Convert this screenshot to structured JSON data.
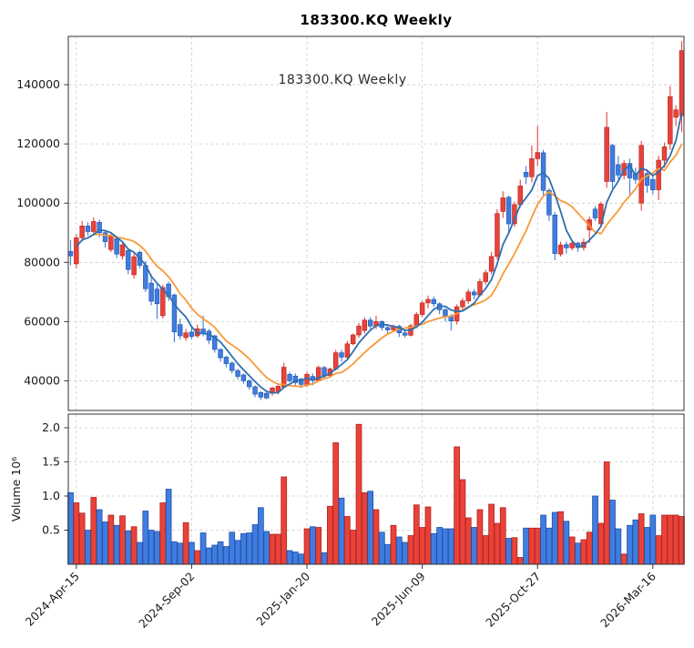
{
  "chart_data": {
    "type": "candlestick+volume",
    "title": "183300.KQ  Weekly",
    "inplot_label": "183300.KQ  Weekly",
    "x_ticks": [
      {
        "index": 1,
        "label": "2024-Apr-15"
      },
      {
        "index": 21,
        "label": "2024-Sep-02"
      },
      {
        "index": 41,
        "label": "2025-Jan-20"
      },
      {
        "index": 61,
        "label": "2025-Jun-09"
      },
      {
        "index": 81,
        "label": "2025-Oct-27"
      },
      {
        "index": 101,
        "label": "2026-Mar-16"
      }
    ],
    "price_ticks": [
      {
        "value": 40000,
        "label": "40000"
      },
      {
        "value": 60000,
        "label": "60000"
      },
      {
        "value": 80000,
        "label": "80000"
      },
      {
        "value": 100000,
        "label": "100000"
      },
      {
        "value": 120000,
        "label": "120000"
      },
      {
        "value": 140000,
        "label": "140000"
      }
    ],
    "volume_ticks": [
      {
        "value": 0.5,
        "label": "0.5"
      },
      {
        "value": 1.0,
        "label": "1.0"
      },
      {
        "value": 1.5,
        "label": "1.5"
      },
      {
        "value": 2.0,
        "label": "2.0"
      }
    ],
    "volume_axis_label": "Volume  10⁶",
    "price_ylim": [
      30000,
      156300
    ],
    "volume_ylim": [
      0,
      2.2
    ],
    "legend": "red = up week, blue = down week; blue line = short moving average, orange line = long moving average",
    "ma": {
      "short_window": 5,
      "long_window": 10
    },
    "colors": {
      "up_fill": "#e8423a",
      "up_edge": "#b2241d",
      "down_fill": "#3f7de0",
      "down_edge": "#2250a8",
      "ma_short": "#2d6fb0",
      "ma_long": "#f89939",
      "grid": "#cccccc",
      "border": "#333333",
      "text": "#1a1a1a"
    },
    "weeks_format": [
      "open",
      "high",
      "low",
      "close",
      "volume_millions"
    ],
    "weeks": [
      [
        83700,
        87500,
        79000,
        82200,
        1.05
      ],
      [
        79500,
        89500,
        78000,
        88300,
        0.9
      ],
      [
        88300,
        94000,
        87000,
        92300,
        0.75
      ],
      [
        92300,
        93500,
        89000,
        90400,
        0.5
      ],
      [
        90400,
        95200,
        89500,
        93800,
        0.98
      ],
      [
        93500,
        94500,
        88500,
        90000,
        0.8
      ],
      [
        90000,
        91000,
        85000,
        87000,
        0.62
      ],
      [
        84300,
        90000,
        83500,
        88900,
        0.72
      ],
      [
        88000,
        88500,
        81500,
        82800,
        0.57
      ],
      [
        82200,
        87000,
        81000,
        85900,
        0.71
      ],
      [
        84000,
        84500,
        76000,
        77600,
        0.49
      ],
      [
        75800,
        83000,
        74500,
        81900,
        0.55
      ],
      [
        83400,
        84000,
        78000,
        79000,
        0.32
      ],
      [
        79000,
        80500,
        70000,
        71100,
        0.78
      ],
      [
        73000,
        76000,
        65500,
        66900,
        0.5
      ],
      [
        71000,
        72500,
        60900,
        66000,
        0.48
      ],
      [
        62000,
        72500,
        61000,
        71500,
        0.9
      ],
      [
        72700,
        73500,
        67000,
        68400,
        1.1
      ],
      [
        69000,
        69500,
        53000,
        56500,
        0.33
      ],
      [
        59000,
        61000,
        54000,
        55200,
        0.31
      ],
      [
        54600,
        57500,
        53500,
        56200,
        0.61
      ],
      [
        56500,
        58000,
        54000,
        55000,
        0.32
      ],
      [
        55200,
        59000,
        54500,
        57600,
        0.2
      ],
      [
        57500,
        62000,
        55000,
        56000,
        0.46
      ],
      [
        56800,
        57500,
        52500,
        53700,
        0.24
      ],
      [
        55200,
        55500,
        49500,
        50600,
        0.28
      ],
      [
        50600,
        51000,
        46500,
        47800,
        0.33
      ],
      [
        48000,
        48500,
        44500,
        45800,
        0.26
      ],
      [
        46000,
        46500,
        42500,
        43500,
        0.47
      ],
      [
        43500,
        44000,
        40500,
        41500,
        0.35
      ],
      [
        42000,
        42500,
        39000,
        40000,
        0.45
      ],
      [
        40000,
        40500,
        37000,
        38000,
        0.46
      ],
      [
        38000,
        38500,
        34500,
        35500,
        0.58
      ],
      [
        36100,
        36500,
        33500,
        34500,
        0.83
      ],
      [
        35800,
        36200,
        33800,
        34200,
        0.48
      ],
      [
        35800,
        38000,
        35000,
        37600,
        0.44
      ],
      [
        36400,
        38500,
        35500,
        38200,
        0.44
      ],
      [
        37900,
        46100,
        37500,
        44600,
        1.28
      ],
      [
        42200,
        43000,
        39500,
        40000,
        0.2
      ],
      [
        41600,
        42500,
        38500,
        39400,
        0.18
      ],
      [
        40600,
        41000,
        37600,
        38800,
        0.15
      ],
      [
        38500,
        43000,
        38000,
        42200,
        0.52
      ],
      [
        41500,
        42500,
        38500,
        40200,
        0.55
      ],
      [
        40200,
        45200,
        39800,
        44500,
        0.54
      ],
      [
        44500,
        45000,
        40500,
        41800,
        0.17
      ],
      [
        41800,
        44500,
        41000,
        44000,
        0.85
      ],
      [
        44000,
        50500,
        43500,
        49500,
        1.78
      ],
      [
        49500,
        50500,
        46500,
        48000,
        0.97
      ],
      [
        48000,
        53500,
        47500,
        52500,
        0.7
      ],
      [
        52500,
        56000,
        52000,
        55500,
        0.5
      ],
      [
        55500,
        59500,
        54500,
        58500,
        2.05
      ],
      [
        57000,
        61500,
        56000,
        60500,
        1.05
      ],
      [
        60500,
        61500,
        57500,
        58500,
        1.07
      ],
      [
        58500,
        62000,
        57500,
        60000,
        0.8
      ],
      [
        60000,
        60500,
        57000,
        58000,
        0.47
      ],
      [
        58000,
        58500,
        56000,
        57200,
        0.29
      ],
      [
        57200,
        59000,
        56500,
        58400,
        0.57
      ],
      [
        58400,
        59000,
        54800,
        56200,
        0.4
      ],
      [
        56200,
        57000,
        54500,
        55400,
        0.32
      ],
      [
        55400,
        59300,
        55000,
        58600,
        0.42
      ],
      [
        58600,
        63200,
        57800,
        62400,
        0.87
      ],
      [
        62400,
        67000,
        61500,
        66300,
        0.54
      ],
      [
        66300,
        68800,
        64500,
        67500,
        0.84
      ],
      [
        67500,
        68500,
        65000,
        66000,
        0.45
      ],
      [
        66000,
        66500,
        62500,
        64000,
        0.54
      ],
      [
        64000,
        64500,
        60000,
        61800,
        0.52
      ],
      [
        61800,
        62500,
        57000,
        60200,
        0.52
      ],
      [
        60200,
        65800,
        59000,
        65000,
        1.72
      ],
      [
        65000,
        68000,
        63500,
        67000,
        1.24
      ],
      [
        67000,
        71000,
        66000,
        70000,
        0.68
      ],
      [
        70000,
        71000,
        67500,
        69000,
        0.54
      ],
      [
        69000,
        74500,
        68500,
        73500,
        0.8
      ],
      [
        73500,
        77500,
        72500,
        76500,
        0.42
      ],
      [
        77000,
        83500,
        76000,
        82000,
        0.88
      ],
      [
        82000,
        98000,
        81000,
        96500,
        0.6
      ],
      [
        97200,
        104000,
        95000,
        101800,
        0.83
      ],
      [
        102000,
        102500,
        90000,
        93000,
        0.38
      ],
      [
        93000,
        100500,
        92000,
        99500,
        0.39
      ],
      [
        99500,
        107900,
        98500,
        105800,
        0.1
      ],
      [
        110400,
        112500,
        106400,
        108900,
        0.53
      ],
      [
        108900,
        119500,
        107000,
        115000,
        0.53
      ],
      [
        115000,
        126000,
        112500,
        117100,
        0.53
      ],
      [
        117000,
        118000,
        102000,
        104300,
        0.72
      ],
      [
        104300,
        105000,
        94000,
        96000,
        0.53
      ],
      [
        96000,
        97000,
        80700,
        83000,
        0.76
      ],
      [
        82800,
        87000,
        82000,
        85900,
        0.77
      ],
      [
        86000,
        87000,
        83000,
        84900,
        0.63
      ],
      [
        84900,
        87500,
        84000,
        86500,
        0.4
      ],
      [
        86500,
        87000,
        83500,
        85000,
        0.31
      ],
      [
        85000,
        88000,
        84000,
        86800,
        0.36
      ],
      [
        91000,
        95500,
        86500,
        94400,
        0.47
      ],
      [
        98000,
        99000,
        94000,
        95000,
        1.0
      ],
      [
        93000,
        100500,
        92500,
        99700,
        0.6
      ],
      [
        107300,
        130800,
        105200,
        125600,
        1.5
      ],
      [
        119500,
        120000,
        105000,
        107300,
        0.94
      ],
      [
        113000,
        116000,
        108000,
        109500,
        0.52
      ],
      [
        109400,
        114500,
        108000,
        113400,
        0.15
      ],
      [
        113400,
        115000,
        103000,
        108500,
        0.57
      ],
      [
        110000,
        112000,
        106500,
        108000,
        0.65
      ],
      [
        100000,
        121000,
        97500,
        119500,
        0.74
      ],
      [
        110000,
        111500,
        103500,
        106000,
        0.54
      ],
      [
        108000,
        109500,
        103000,
        104500,
        0.72
      ],
      [
        104500,
        116000,
        101000,
        114500,
        0.42
      ],
      [
        114500,
        120500,
        112000,
        119000,
        0.72
      ],
      [
        120000,
        139500,
        118000,
        136000,
        0.72
      ],
      [
        129000,
        133000,
        126000,
        131500,
        0.72
      ],
      [
        129500,
        154700,
        124100,
        151500,
        0.7
      ]
    ]
  }
}
